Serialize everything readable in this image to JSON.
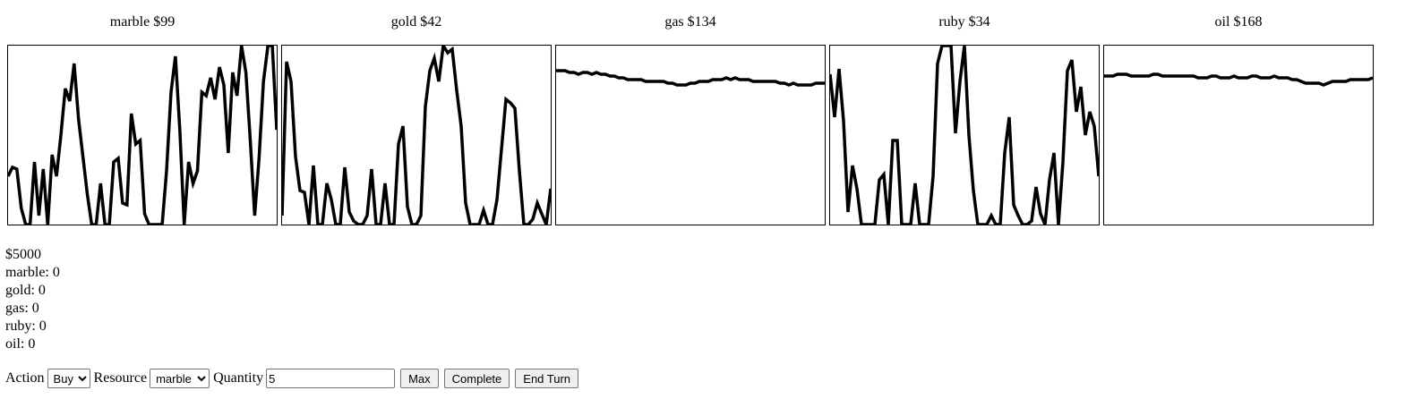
{
  "charts": [
    {
      "title": "marble $99",
      "chart_data": {
        "type": "line",
        "title": "marble $99",
        "ylim": [
          0,
          100
        ],
        "values": [
          27,
          32,
          31,
          9,
          0,
          0,
          35,
          5,
          31,
          0,
          39,
          27,
          50,
          76,
          69,
          90,
          59,
          38,
          17,
          0,
          0,
          23,
          0,
          0,
          35,
          37,
          12,
          11,
          62,
          45,
          47,
          6,
          0,
          0,
          0,
          0,
          30,
          74,
          94,
          53,
          0,
          35,
          23,
          30,
          74,
          72,
          82,
          70,
          88,
          78,
          40,
          85,
          72,
          100,
          85,
          47,
          5,
          37,
          80,
          100,
          100,
          53
        ]
      }
    },
    {
      "title": "gold $42",
      "chart_data": {
        "type": "line",
        "title": "gold $42",
        "ylim": [
          0,
          100
        ],
        "values": [
          5,
          91,
          80,
          38,
          19,
          18,
          0,
          33,
          0,
          0,
          23,
          14,
          0,
          0,
          32,
          7,
          2,
          0,
          0,
          5,
          31,
          0,
          0,
          23,
          0,
          0,
          45,
          55,
          10,
          0,
          0,
          5,
          66,
          86,
          93,
          80,
          100,
          96,
          98,
          75,
          55,
          12,
          0,
          0,
          0,
          8,
          0,
          0,
          14,
          42,
          70,
          68,
          65,
          30,
          0,
          0,
          3,
          12,
          6,
          0,
          20
        ]
      }
    },
    {
      "title": "gas $134",
      "chart_data": {
        "type": "line",
        "title": "gas $134",
        "ylim": [
          0,
          100
        ],
        "values": [
          86,
          86,
          86,
          85,
          85,
          84,
          85,
          85,
          84,
          85,
          84,
          84,
          83,
          83,
          82,
          82,
          81,
          81,
          81,
          81,
          80,
          80,
          80,
          80,
          80,
          79,
          79,
          78,
          78,
          78,
          79,
          79,
          80,
          80,
          80,
          81,
          81,
          81,
          82,
          81,
          82,
          81,
          81,
          81,
          80,
          80,
          80,
          80,
          80,
          80,
          79,
          79,
          78,
          79,
          78,
          78,
          78,
          78,
          79,
          79,
          79
        ]
      }
    },
    {
      "title": "ruby $34",
      "chart_data": {
        "type": "line",
        "title": "ruby $34",
        "ylim": [
          0,
          100
        ],
        "values": [
          84,
          60,
          87,
          58,
          7,
          33,
          20,
          0,
          0,
          0,
          0,
          25,
          28,
          0,
          47,
          47,
          0,
          0,
          0,
          23,
          0,
          0,
          0,
          27,
          90,
          100,
          100,
          100,
          51,
          80,
          100,
          50,
          19,
          0,
          0,
          0,
          5,
          0,
          0,
          40,
          60,
          11,
          5,
          0,
          0,
          2,
          21,
          6,
          0,
          25,
          40,
          0,
          35,
          86,
          92,
          63,
          77,
          50,
          63,
          55,
          27
        ]
      }
    },
    {
      "title": "oil $168",
      "chart_data": {
        "type": "line",
        "title": "oil $168",
        "ylim": [
          0,
          100
        ],
        "values": [
          83,
          83,
          83,
          84,
          84,
          84,
          83,
          83,
          83,
          83,
          83,
          84,
          84,
          83,
          83,
          83,
          83,
          83,
          83,
          83,
          83,
          82,
          82,
          82,
          83,
          83,
          82,
          82,
          82,
          83,
          82,
          82,
          82,
          83,
          83,
          82,
          82,
          82,
          83,
          82,
          82,
          82,
          81,
          81,
          80,
          79,
          79,
          79,
          79,
          78,
          79,
          80,
          80,
          80,
          80,
          81,
          81,
          81,
          81,
          81,
          82
        ]
      }
    }
  ],
  "stats": {
    "money": "$5000",
    "holdings": [
      {
        "label": "marble: 0"
      },
      {
        "label": "gold: 0"
      },
      {
        "label": "gas: 0"
      },
      {
        "label": "ruby: 0"
      },
      {
        "label": "oil: 0"
      }
    ]
  },
  "controls": {
    "action_label": "Action",
    "action_value": "Buy",
    "resource_label": "Resource",
    "resource_value": "marble",
    "quantity_label": "Quantity",
    "quantity_value": "5",
    "max_label": "Max",
    "complete_label": "Complete",
    "end_turn_label": "End Turn"
  }
}
